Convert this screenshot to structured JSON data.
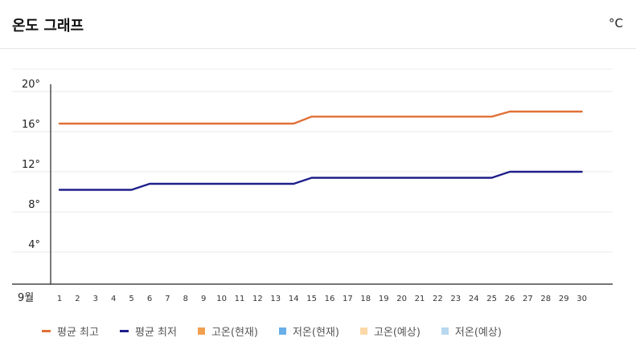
{
  "header": {
    "title": "온도 그래프",
    "unit": "°C"
  },
  "colors": {
    "avg_high": "#e07035",
    "avg_low": "#1f1f8a",
    "high_current": "#f0a050",
    "low_current": "#6aaee8",
    "high_forecast": "#fbd8a8",
    "low_forecast": "#b8d8f0"
  },
  "legend": [
    {
      "label": "평균 최고",
      "kind": "line",
      "color": "#e07035"
    },
    {
      "label": "평균 최저",
      "kind": "line",
      "color": "#1f1f8a"
    },
    {
      "label": "고온(현재)",
      "kind": "box",
      "color": "#f0a050"
    },
    {
      "label": "저온(현재)",
      "kind": "box",
      "color": "#6aaee8"
    },
    {
      "label": "고온(예상)",
      "kind": "box",
      "color": "#fbd8a8"
    },
    {
      "label": "저온(예상)",
      "kind": "box",
      "color": "#b8d8f0"
    }
  ],
  "chart_data": {
    "type": "line",
    "title": "온도 그래프",
    "unit": "°C",
    "month_label": "9월",
    "x": [
      1,
      2,
      3,
      4,
      5,
      6,
      7,
      8,
      9,
      10,
      11,
      12,
      13,
      14,
      15,
      16,
      17,
      18,
      19,
      20,
      21,
      22,
      23,
      24,
      25,
      26,
      27,
      28,
      29,
      30
    ],
    "yticks": [
      "4°",
      "8°",
      "12°",
      "16°",
      "20°"
    ],
    "ytick_values": [
      4,
      8,
      12,
      16,
      20
    ],
    "ylim": [
      0,
      21
    ],
    "grid": true,
    "legend_position": "bottom",
    "series": [
      {
        "name": "평균 최고",
        "color": "#e07035",
        "values": [
          16,
          16,
          16,
          16,
          16,
          16,
          16,
          16,
          16,
          16,
          16,
          16,
          16,
          16,
          16.7,
          16.7,
          16.7,
          16.7,
          16.7,
          16.7,
          16.7,
          16.7,
          16.7,
          16.7,
          16.7,
          17.2,
          17.2,
          17.2,
          17.2,
          17.2
        ]
      },
      {
        "name": "평균 최저",
        "color": "#1f1f8a",
        "values": [
          9.4,
          9.4,
          9.4,
          9.4,
          9.4,
          10,
          10,
          10,
          10,
          10,
          10,
          10,
          10,
          10,
          10.6,
          10.6,
          10.6,
          10.6,
          10.6,
          10.6,
          10.6,
          10.6,
          10.6,
          10.6,
          10.6,
          11.2,
          11.2,
          11.2,
          11.2,
          11.2
        ]
      }
    ]
  }
}
